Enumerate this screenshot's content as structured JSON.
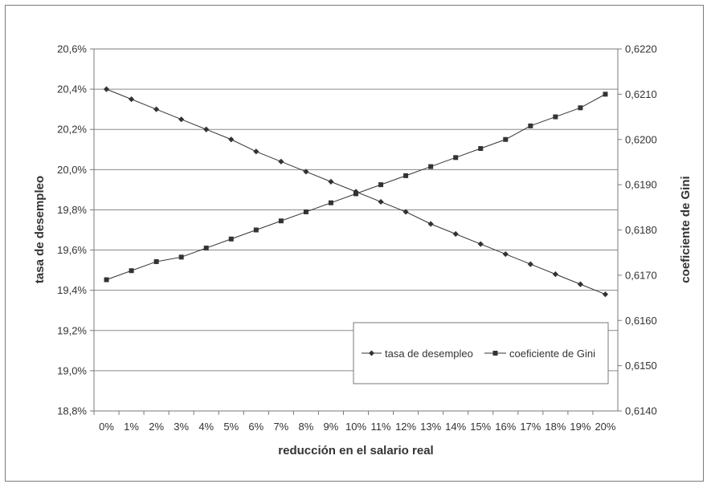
{
  "chart_data": {
    "type": "line",
    "title": "",
    "xlabel": "reducción en el salario real",
    "ylabel_left": "tasa de desempleo",
    "ylabel_right": "coeficiente de Gini",
    "categories": [
      "0%",
      "1%",
      "2%",
      "3%",
      "4%",
      "5%",
      "6%",
      "7%",
      "8%",
      "9%",
      "10%",
      "11%",
      "12%",
      "13%",
      "14%",
      "15%",
      "16%",
      "17%",
      "18%",
      "19%",
      "20%"
    ],
    "y_left": {
      "min": 18.8,
      "max": 20.6,
      "ticks": [
        18.8,
        19.0,
        19.2,
        19.4,
        19.6,
        19.8,
        20.0,
        20.2,
        20.4,
        20.6
      ],
      "tick_labels": [
        "18,8%",
        "19,0%",
        "19,2%",
        "19,4%",
        "19,6%",
        "19,8%",
        "20,0%",
        "20,2%",
        "20,4%",
        "20,6%"
      ]
    },
    "y_right": {
      "min": 0.614,
      "max": 0.622,
      "ticks": [
        0.614,
        0.615,
        0.616,
        0.617,
        0.618,
        0.619,
        0.62,
        0.621,
        0.622
      ],
      "tick_labels": [
        "0,6140",
        "0,6150",
        "0,6160",
        "0,6170",
        "0,6180",
        "0,6190",
        "0,6200",
        "0,6210",
        "0,6220"
      ]
    },
    "grid": true,
    "legend_position": "bottom-right",
    "series": [
      {
        "name": "tasa de desempleo",
        "axis": "left",
        "marker": "diamond",
        "values": [
          20.4,
          20.35,
          20.3,
          20.25,
          20.2,
          20.15,
          20.09,
          20.04,
          19.99,
          19.94,
          19.89,
          19.84,
          19.79,
          19.73,
          19.68,
          19.63,
          19.58,
          19.53,
          19.48,
          19.43,
          19.38
        ]
      },
      {
        "name": "coeficiente de Gini",
        "axis": "right",
        "marker": "square",
        "values": [
          0.6169,
          0.6171,
          0.6173,
          0.6174,
          0.6176,
          0.6178,
          0.618,
          0.6182,
          0.6184,
          0.6186,
          0.6188,
          0.619,
          0.6192,
          0.6194,
          0.6196,
          0.6198,
          0.62,
          0.6203,
          0.6205,
          0.6207,
          0.621
        ]
      }
    ],
    "colors": {
      "series": "#333333",
      "grid": "#8a8a8a",
      "frame": "#7a7a7a"
    }
  }
}
